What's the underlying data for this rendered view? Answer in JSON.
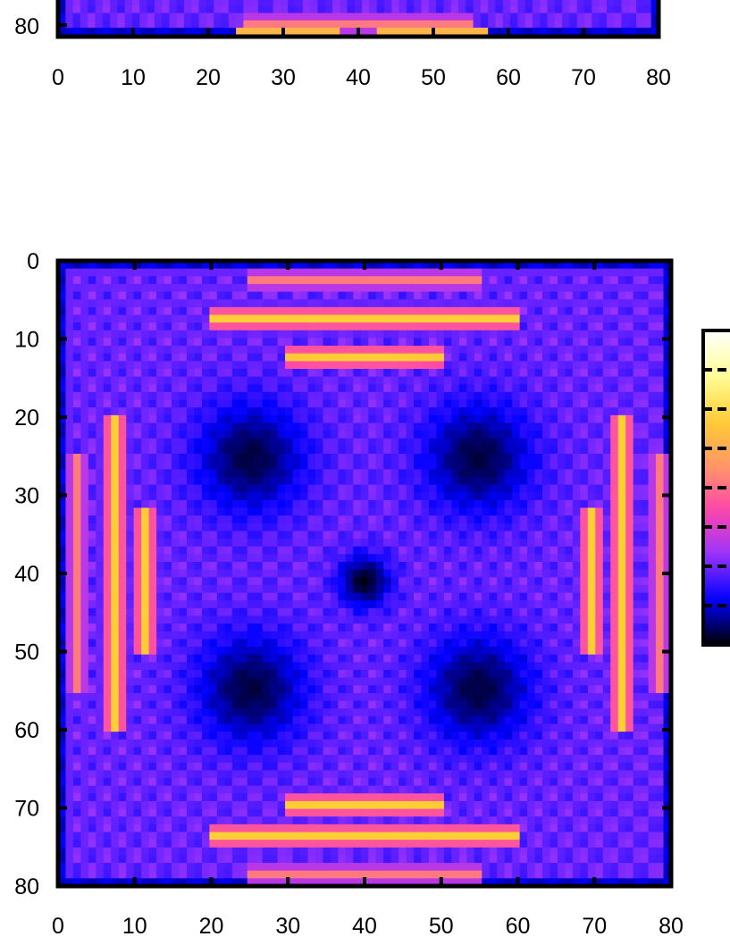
{
  "chart_data": [
    {
      "type": "heatmap",
      "title": "",
      "xlabel": "",
      "ylabel": "",
      "xlim": [
        0,
        80
      ],
      "ylim": [
        0,
        80
      ],
      "y_inverted": true,
      "grid": false,
      "partially_visible": "top panel cropped; only bottom row of the heatmap (y near 80) is visible",
      "x_ticks": [
        0,
        10,
        20,
        30,
        40,
        50,
        60,
        70,
        80
      ],
      "x_tick_labels": [
        "0",
        "10",
        "20",
        "30",
        "40",
        "50",
        "60",
        "70",
        "80"
      ],
      "y_ticks": [
        80
      ],
      "y_tick_labels": [
        "80"
      ],
      "visible_bottom_row_hot_spots": [
        {
          "x_range": [
            24,
            37
          ],
          "level": "high"
        },
        {
          "x_range": [
            43,
            57
          ],
          "level": "high"
        }
      ]
    },
    {
      "type": "heatmap",
      "title": "",
      "xlabel": "",
      "ylabel": "",
      "xlim": [
        0,
        80
      ],
      "ylim": [
        0,
        80
      ],
      "y_inverted": true,
      "grid": false,
      "colormap": [
        "#000000",
        "#0000ff",
        "#9933ff",
        "#ff44aa",
        "#ff9966",
        "#ffcc33",
        "#ffff99",
        "#ffffff"
      ],
      "colorbar": {
        "present": true,
        "tick_labels": []
      },
      "x_ticks": [
        0,
        10,
        20,
        30,
        40,
        50,
        60,
        70,
        80
      ],
      "x_tick_labels": [
        "0",
        "10",
        "20",
        "30",
        "40",
        "50",
        "60",
        "70",
        "80"
      ],
      "y_ticks": [
        0,
        10,
        20,
        30,
        40,
        50,
        60,
        70,
        80
      ],
      "y_tick_labels": [
        "0",
        "10",
        "20",
        "30",
        "40",
        "50",
        "60",
        "70",
        "80"
      ],
      "pattern": "square-symmetric interference pattern: bright bands near every edge, dark quadrants around (25,25),(55,25),(25,55),(55,55), black minimum at the center (40,41)",
      "features": [
        {
          "name": "bright band",
          "orientation": "horizontal",
          "y": 7,
          "x_range": [
            20,
            60
          ],
          "level": "high"
        },
        {
          "name": "bright band",
          "orientation": "horizontal",
          "y": 12,
          "x_range": [
            30,
            50
          ],
          "level": "high"
        },
        {
          "name": "bright band",
          "orientation": "horizontal",
          "y": 2,
          "x_range": [
            25,
            55
          ],
          "level": "medium"
        },
        {
          "name": "bright band",
          "orientation": "horizontal",
          "y": 74,
          "x_range": [
            20,
            60
          ],
          "level": "high"
        },
        {
          "name": "bright band",
          "orientation": "horizontal",
          "y": 70,
          "x_range": [
            30,
            50
          ],
          "level": "high"
        },
        {
          "name": "bright band",
          "orientation": "horizontal",
          "y": 79,
          "x_range": [
            25,
            55
          ],
          "level": "medium"
        },
        {
          "name": "bright band",
          "orientation": "vertical",
          "x": 7,
          "y_range": [
            20,
            60
          ],
          "level": "high"
        },
        {
          "name": "bright band",
          "orientation": "vertical",
          "x": 11,
          "y_range": [
            32,
            50
          ],
          "level": "high"
        },
        {
          "name": "bright band",
          "orientation": "vertical",
          "x": 2,
          "y_range": [
            25,
            55
          ],
          "level": "medium"
        },
        {
          "name": "bright band",
          "orientation": "vertical",
          "x": 74,
          "y_range": [
            20,
            60
          ],
          "level": "high"
        },
        {
          "name": "bright band",
          "orientation": "vertical",
          "x": 70,
          "y_range": [
            32,
            50
          ],
          "level": "high"
        },
        {
          "name": "bright band",
          "orientation": "vertical",
          "x": 79,
          "y_range": [
            25,
            55
          ],
          "level": "medium"
        },
        {
          "name": "central minimum",
          "x": 40,
          "y": 41,
          "level": "zero"
        }
      ]
    }
  ]
}
